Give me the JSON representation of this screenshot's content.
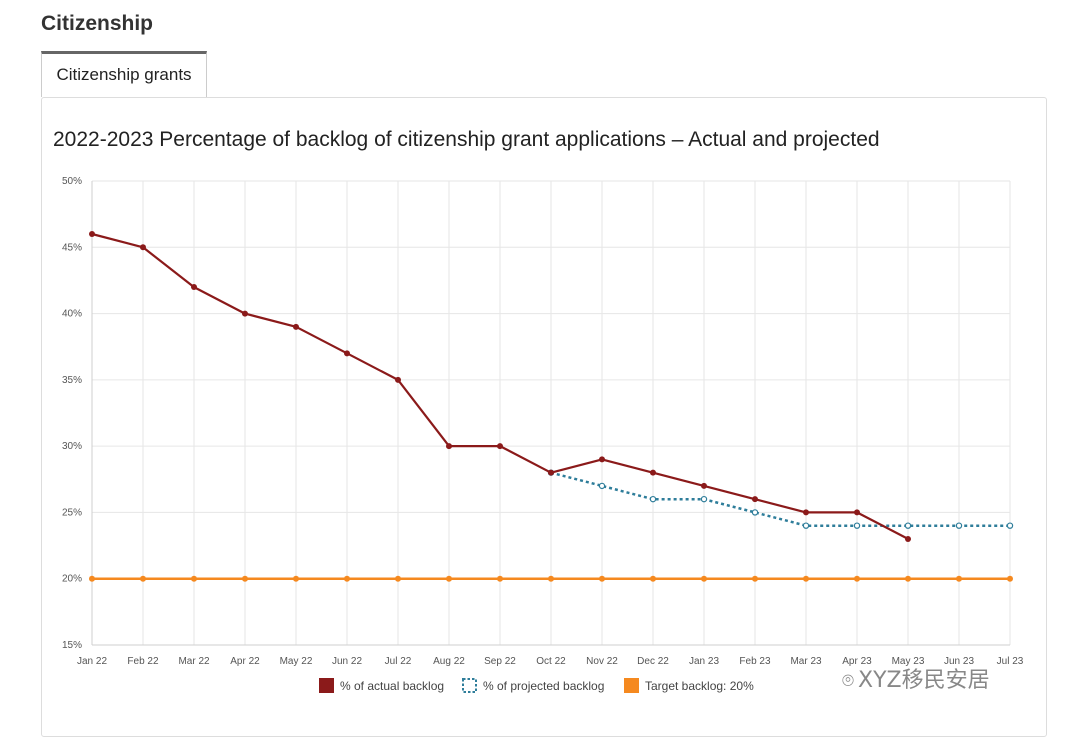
{
  "page": {
    "section_title": "Citizenship"
  },
  "tabs": [
    {
      "label": "Citizenship grants"
    }
  ],
  "watermark": {
    "text": "XYZ移民安居"
  },
  "colors": {
    "actual": "#8b1a1a",
    "projected": "#2e7d9a",
    "target": "#f5891f",
    "grid": "#e6e6e6"
  },
  "chart_data": {
    "type": "line",
    "title": "2022-2023 Percentage of backlog of citizenship grant applications – Actual and projected",
    "categories": [
      "Jan 22",
      "Feb 22",
      "Mar 22",
      "Apr 22",
      "May 22",
      "Jun 22",
      "Jul 22",
      "Aug 22",
      "Sep 22",
      "Oct 22",
      "Nov 22",
      "Dec 22",
      "Jan 23",
      "Feb 23",
      "Mar 23",
      "Apr 23",
      "May 23",
      "Jun 23",
      "Jul 23"
    ],
    "ylim": [
      15,
      50
    ],
    "yticks": [
      15,
      20,
      25,
      30,
      35,
      40,
      45,
      50
    ],
    "ytick_suffix": "%",
    "grid": true,
    "legend_position": "bottom",
    "series": [
      {
        "name": "% of actual backlog",
        "style": "solid",
        "values": [
          46,
          45,
          42,
          40,
          39,
          37,
          35,
          30,
          30,
          28,
          29,
          28,
          27,
          26,
          25,
          25,
          23,
          null,
          null
        ]
      },
      {
        "name": "% of projected backlog",
        "style": "dotted",
        "values": [
          null,
          null,
          null,
          null,
          null,
          null,
          null,
          null,
          null,
          28,
          27,
          26,
          26,
          25,
          24,
          24,
          24,
          24,
          24
        ]
      },
      {
        "name": "Target backlog: 20%",
        "style": "solid",
        "values": [
          20,
          20,
          20,
          20,
          20,
          20,
          20,
          20,
          20,
          20,
          20,
          20,
          20,
          20,
          20,
          20,
          20,
          20,
          20
        ]
      }
    ]
  }
}
